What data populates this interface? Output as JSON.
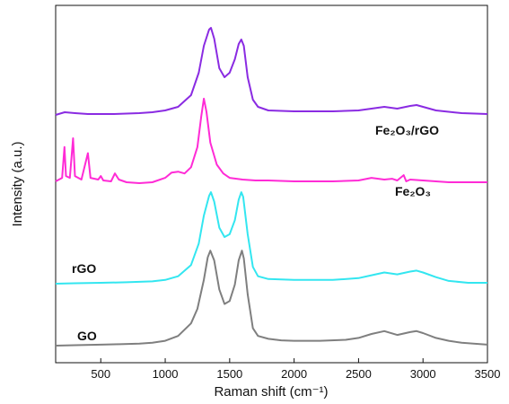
{
  "chart_data": {
    "type": "line",
    "xlabel": "Raman shift (cm⁻¹)",
    "ylabel": "Intensity (a.u.)",
    "xlim": [
      150,
      3500
    ],
    "x_ticks": [
      500,
      1000,
      1500,
      2000,
      2500,
      3000,
      3500
    ],
    "y_ticks_shown": false,
    "grid": false,
    "legend": "none",
    "label_placement": "inline-next-to-each-curve",
    "series": [
      {
        "name": "GO",
        "color": "#7f7f7f",
        "offset_level": 0,
        "points": [
          [
            150,
            0.02
          ],
          [
            300,
            0.025
          ],
          [
            500,
            0.03
          ],
          [
            650,
            0.035
          ],
          [
            800,
            0.04
          ],
          [
            900,
            0.05
          ],
          [
            1000,
            0.07
          ],
          [
            1100,
            0.12
          ],
          [
            1200,
            0.25
          ],
          [
            1250,
            0.4
          ],
          [
            1300,
            0.7
          ],
          [
            1330,
            0.93
          ],
          [
            1350,
            1.0
          ],
          [
            1380,
            0.9
          ],
          [
            1420,
            0.6
          ],
          [
            1460,
            0.45
          ],
          [
            1500,
            0.48
          ],
          [
            1540,
            0.65
          ],
          [
            1570,
            0.9
          ],
          [
            1595,
            1.0
          ],
          [
            1610,
            0.92
          ],
          [
            1640,
            0.55
          ],
          [
            1680,
            0.2
          ],
          [
            1720,
            0.12
          ],
          [
            1800,
            0.09
          ],
          [
            1900,
            0.075
          ],
          [
            2000,
            0.07
          ],
          [
            2200,
            0.07
          ],
          [
            2400,
            0.08
          ],
          [
            2500,
            0.1
          ],
          [
            2600,
            0.14
          ],
          [
            2700,
            0.17
          ],
          [
            2800,
            0.13
          ],
          [
            2900,
            0.16
          ],
          [
            2950,
            0.17
          ],
          [
            3000,
            0.15
          ],
          [
            3100,
            0.1
          ],
          [
            3200,
            0.07
          ],
          [
            3300,
            0.05
          ],
          [
            3500,
            0.03
          ]
        ]
      },
      {
        "name": "rGO",
        "color": "#33e6f0",
        "offset_level": 1,
        "points": [
          [
            150,
            0.02
          ],
          [
            300,
            0.025
          ],
          [
            500,
            0.03
          ],
          [
            700,
            0.035
          ],
          [
            900,
            0.045
          ],
          [
            1000,
            0.06
          ],
          [
            1100,
            0.1
          ],
          [
            1200,
            0.22
          ],
          [
            1260,
            0.45
          ],
          [
            1300,
            0.75
          ],
          [
            1340,
            0.96
          ],
          [
            1355,
            1.0
          ],
          [
            1380,
            0.9
          ],
          [
            1420,
            0.62
          ],
          [
            1460,
            0.52
          ],
          [
            1500,
            0.55
          ],
          [
            1540,
            0.7
          ],
          [
            1570,
            0.92
          ],
          [
            1590,
            1.0
          ],
          [
            1605,
            0.95
          ],
          [
            1640,
            0.55
          ],
          [
            1680,
            0.2
          ],
          [
            1720,
            0.1
          ],
          [
            1800,
            0.07
          ],
          [
            2000,
            0.06
          ],
          [
            2300,
            0.06
          ],
          [
            2500,
            0.08
          ],
          [
            2600,
            0.11
          ],
          [
            2700,
            0.14
          ],
          [
            2800,
            0.12
          ],
          [
            2900,
            0.15
          ],
          [
            2950,
            0.16
          ],
          [
            3000,
            0.14
          ],
          [
            3100,
            0.09
          ],
          [
            3200,
            0.05
          ],
          [
            3350,
            0.03
          ],
          [
            3500,
            0.03
          ]
        ]
      },
      {
        "name": "Fe₂O₃",
        "color": "#ff2bd6",
        "offset_level": 2,
        "points": [
          [
            150,
            0.06
          ],
          [
            200,
            0.1
          ],
          [
            218,
            0.45
          ],
          [
            230,
            0.12
          ],
          [
            260,
            0.1
          ],
          [
            285,
            0.55
          ],
          [
            300,
            0.12
          ],
          [
            350,
            0.08
          ],
          [
            400,
            0.38
          ],
          [
            420,
            0.1
          ],
          [
            480,
            0.08
          ],
          [
            500,
            0.12
          ],
          [
            520,
            0.07
          ],
          [
            580,
            0.06
          ],
          [
            610,
            0.15
          ],
          [
            640,
            0.08
          ],
          [
            700,
            0.05
          ],
          [
            800,
            0.04
          ],
          [
            900,
            0.05
          ],
          [
            1000,
            0.1
          ],
          [
            1050,
            0.16
          ],
          [
            1100,
            0.17
          ],
          [
            1150,
            0.15
          ],
          [
            1200,
            0.22
          ],
          [
            1250,
            0.45
          ],
          [
            1280,
            0.8
          ],
          [
            1300,
            1.0
          ],
          [
            1320,
            0.85
          ],
          [
            1350,
            0.5
          ],
          [
            1400,
            0.25
          ],
          [
            1450,
            0.15
          ],
          [
            1500,
            0.1
          ],
          [
            1600,
            0.08
          ],
          [
            1700,
            0.07
          ],
          [
            1800,
            0.07
          ],
          [
            2000,
            0.06
          ],
          [
            2300,
            0.06
          ],
          [
            2500,
            0.07
          ],
          [
            2600,
            0.1
          ],
          [
            2700,
            0.08
          ],
          [
            2760,
            0.09
          ],
          [
            2800,
            0.07
          ],
          [
            2850,
            0.13
          ],
          [
            2870,
            0.06
          ],
          [
            2900,
            0.08
          ],
          [
            3000,
            0.07
          ],
          [
            3200,
            0.05
          ],
          [
            3500,
            0.05
          ]
        ]
      },
      {
        "name": "Fe₂O₃/rGO",
        "color": "#8a2be2",
        "offset_level": 3,
        "points": [
          [
            150,
            0.03
          ],
          [
            220,
            0.06
          ],
          [
            300,
            0.05
          ],
          [
            400,
            0.04
          ],
          [
            600,
            0.04
          ],
          [
            800,
            0.05
          ],
          [
            900,
            0.06
          ],
          [
            1000,
            0.08
          ],
          [
            1100,
            0.12
          ],
          [
            1200,
            0.25
          ],
          [
            1260,
            0.5
          ],
          [
            1300,
            0.8
          ],
          [
            1340,
            0.98
          ],
          [
            1355,
            1.0
          ],
          [
            1380,
            0.88
          ],
          [
            1420,
            0.55
          ],
          [
            1460,
            0.45
          ],
          [
            1500,
            0.5
          ],
          [
            1540,
            0.65
          ],
          [
            1570,
            0.82
          ],
          [
            1590,
            0.87
          ],
          [
            1610,
            0.8
          ],
          [
            1640,
            0.45
          ],
          [
            1680,
            0.2
          ],
          [
            1720,
            0.12
          ],
          [
            1800,
            0.08
          ],
          [
            2000,
            0.07
          ],
          [
            2300,
            0.07
          ],
          [
            2500,
            0.08
          ],
          [
            2600,
            0.1
          ],
          [
            2700,
            0.12
          ],
          [
            2800,
            0.1
          ],
          [
            2900,
            0.13
          ],
          [
            2950,
            0.14
          ],
          [
            3000,
            0.12
          ],
          [
            3100,
            0.08
          ],
          [
            3300,
            0.05
          ],
          [
            3500,
            0.04
          ]
        ]
      }
    ]
  },
  "labels": {
    "go": "GO",
    "rgo": "rGO",
    "fe2o3": "Fe₂O₃",
    "fe2o3_rgo": "Fe₂O₃/rGO"
  }
}
